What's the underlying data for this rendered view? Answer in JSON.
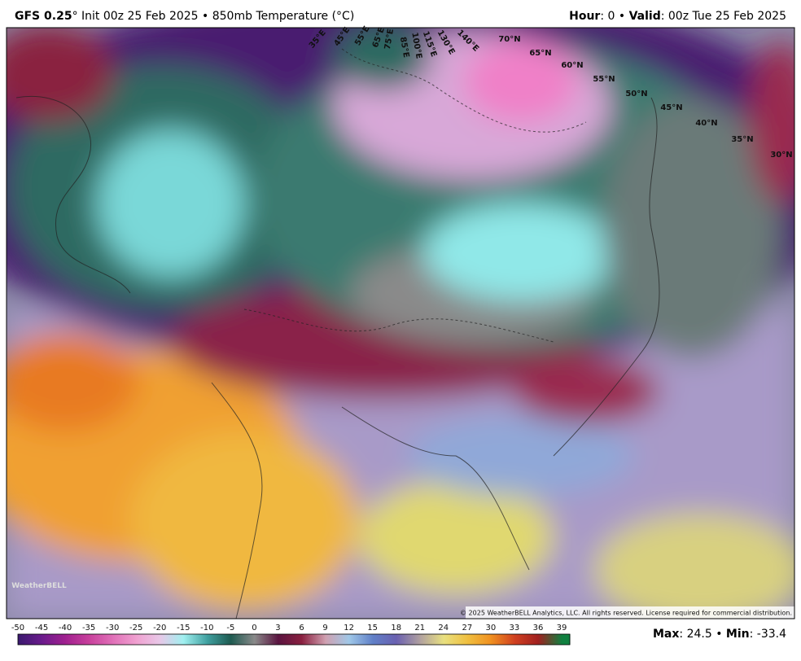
{
  "header": {
    "model": "GFS 0.25",
    "description": "° Init 00z 25 Feb 2025 • 850mb Temperature (°C)",
    "hour_label": "Hour",
    "hour_text": ": 0 • ",
    "valid_label": "Valid",
    "valid_text": ": 00z Tue 25 Feb 2025"
  },
  "longitude_labels": [
    "35°E",
    "45°E",
    "55°E",
    "65°E",
    "75°E",
    "85°E",
    "100°E",
    "115°E",
    "130°E",
    "140°E"
  ],
  "latitude_labels": [
    "70°N",
    "65°N",
    "60°N",
    "55°N",
    "50°N",
    "45°N",
    "40°N",
    "35°N",
    "30°N"
  ],
  "copyright": "© 2025 WeatherBELL Analytics, LLC. All rights reserved. License required for commercial distribution.",
  "logo": "WeatherBELL",
  "colorbar": {
    "ticks": [
      -50,
      -45,
      -40,
      -35,
      -30,
      -25,
      -20,
      -15,
      -10,
      -5,
      0,
      3,
      6,
      9,
      12,
      15,
      18,
      21,
      24,
      27,
      30,
      33,
      36,
      39
    ],
    "colors": [
      "#3a1a6e",
      "#6a1b8c",
      "#a0208f",
      "#c8409c",
      "#e070b8",
      "#f0a0d0",
      "#e8c8e8",
      "#a0f0f0",
      "#40a0a0",
      "#1e5a50",
      "#8a8a8a",
      "#5a1440",
      "#8a2040",
      "#d0a0b0",
      "#a0c8e8",
      "#6080c8",
      "#6a60b0",
      "#b0a0a0",
      "#e8e080",
      "#f0c040",
      "#f09020",
      "#d04020",
      "#a02020",
      "#108040"
    ]
  },
  "summary": [
    "Max",
    ": 24.5 • ",
    "Min",
    ": -33.4"
  ]
}
